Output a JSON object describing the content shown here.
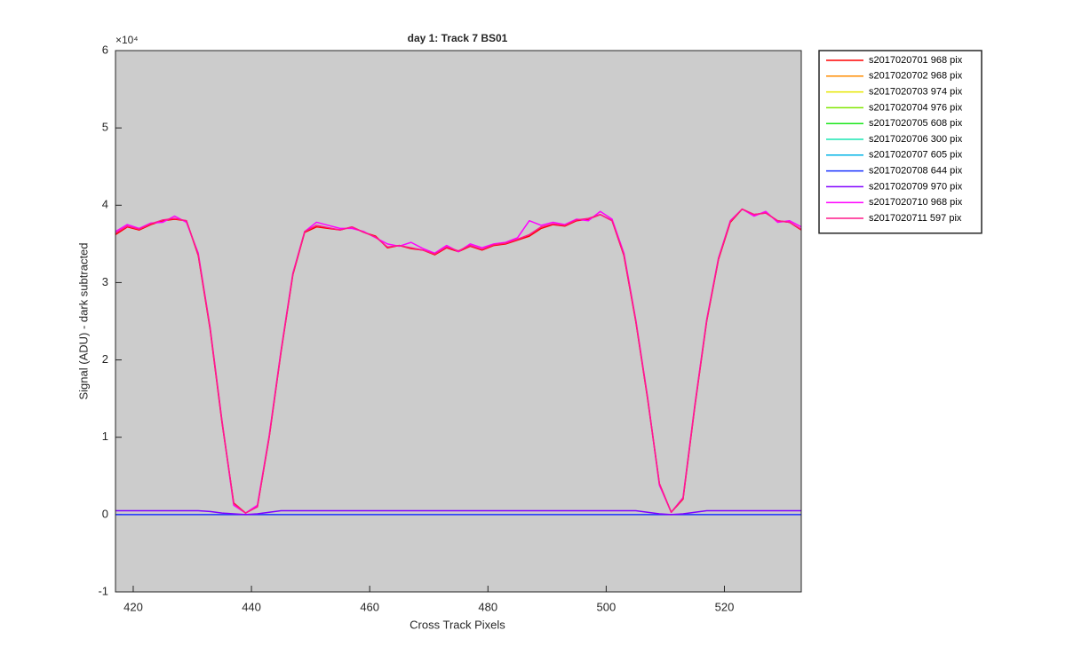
{
  "chart_data": {
    "type": "line",
    "title": "day 1: Track 7  BS01",
    "x_label": "Cross Track Pixels",
    "y_label": "Signal (ADU) - dark subtracted",
    "y_exponent": "×10⁴",
    "xlim": [
      417,
      533
    ],
    "xticks": [
      420,
      440,
      460,
      480,
      500,
      520
    ],
    "ylim": [
      -1,
      6
    ],
    "yticks": [
      -1,
      0,
      1,
      2,
      3,
      4,
      5,
      6
    ],
    "grid": false,
    "legend": "outside-right",
    "x": [
      417,
      419,
      421,
      423,
      425,
      427,
      429,
      431,
      433,
      435,
      437,
      439,
      441,
      443,
      445,
      447,
      449,
      451,
      453,
      455,
      457,
      459,
      461,
      463,
      465,
      467,
      469,
      471,
      473,
      475,
      477,
      479,
      481,
      483,
      485,
      487,
      489,
      491,
      493,
      495,
      497,
      499,
      501,
      503,
      505,
      507,
      509,
      511,
      513,
      515,
      517,
      519,
      521,
      523,
      525,
      527,
      529,
      531,
      533
    ],
    "series": [
      {
        "name": "s2017020701 968 pix",
        "color": "#ff0000",
        "values": [
          3.62,
          3.72,
          3.68,
          3.75,
          3.8,
          3.82,
          3.8,
          3.35,
          2.4,
          1.2,
          0.15,
          0.02,
          0.1,
          1.0,
          2.1,
          3.1,
          3.65,
          3.72,
          3.7,
          3.68,
          3.72,
          3.65,
          3.6,
          3.45,
          3.48,
          3.44,
          3.42,
          3.36,
          3.45,
          3.4,
          3.47,
          3.42,
          3.48,
          3.5,
          3.55,
          3.6,
          3.7,
          3.75,
          3.73,
          3.8,
          3.82,
          3.88,
          3.8,
          3.35,
          2.5,
          1.5,
          0.4,
          0.03,
          0.2,
          1.4,
          2.5,
          3.3,
          3.78,
          3.95,
          3.88,
          3.9,
          3.8,
          3.78,
          3.68
        ]
      },
      {
        "name": "s2017020702 968 pix",
        "color": "#ff8c00",
        "values": [
          null,
          null,
          null,
          null,
          null,
          null,
          null,
          null,
          null,
          null,
          null,
          null,
          null,
          null,
          null,
          null,
          null,
          null,
          null,
          null,
          null,
          null,
          null,
          null,
          null,
          null,
          null,
          null,
          null,
          null,
          null,
          null,
          null,
          null,
          null,
          null,
          null,
          null,
          null,
          null,
          null,
          null,
          null,
          null,
          null,
          null,
          null,
          null,
          null,
          null,
          null,
          null,
          null,
          null,
          null,
          null,
          null,
          null,
          null
        ]
      },
      {
        "name": "s2017020703 974 pix",
        "color": "#e6e600",
        "values": [
          null,
          null,
          null,
          null,
          null,
          null,
          null,
          null,
          null,
          null,
          null,
          null,
          null,
          null,
          null,
          null,
          null,
          null,
          null,
          null,
          null,
          null,
          null,
          null,
          null,
          null,
          null,
          null,
          null,
          null,
          null,
          null,
          null,
          null,
          null,
          null,
          null,
          null,
          null,
          null,
          null,
          null,
          null,
          null,
          null,
          null,
          null,
          null,
          null,
          null,
          null,
          null,
          null,
          null,
          null,
          null,
          null,
          null,
          null
        ]
      },
      {
        "name": "s2017020704 976 pix",
        "color": "#80e600",
        "values": [
          null,
          null,
          null,
          null,
          null,
          null,
          null,
          null,
          null,
          null,
          null,
          null,
          null,
          null,
          null,
          null,
          null,
          null,
          null,
          null,
          null,
          null,
          null,
          null,
          null,
          null,
          null,
          null,
          null,
          null,
          null,
          null,
          null,
          null,
          null,
          null,
          null,
          null,
          null,
          null,
          null,
          null,
          null,
          null,
          null,
          null,
          null,
          null,
          null,
          null,
          null,
          null,
          null,
          null,
          null,
          null,
          null,
          null,
          null
        ]
      },
      {
        "name": "s2017020705 608 pix",
        "color": "#1ae61a",
        "values": [
          null,
          null,
          null,
          null,
          null,
          null,
          null,
          null,
          null,
          null,
          null,
          null,
          null,
          null,
          null,
          null,
          null,
          null,
          null,
          null,
          null,
          null,
          null,
          null,
          null,
          null,
          null,
          null,
          null,
          null,
          null,
          null,
          null,
          null,
          null,
          null,
          null,
          null,
          null,
          null,
          null,
          null,
          null,
          null,
          null,
          null,
          null,
          null,
          null,
          null,
          null,
          null,
          null,
          null,
          null,
          null,
          null,
          null,
          null
        ]
      },
      {
        "name": "s2017020706 300 pix",
        "color": "#1ae6b3",
        "values": [
          null,
          null,
          null,
          null,
          null,
          null,
          null,
          null,
          null,
          null,
          null,
          null,
          null,
          null,
          null,
          null,
          null,
          null,
          null,
          null,
          null,
          null,
          null,
          null,
          null,
          null,
          null,
          null,
          null,
          null,
          null,
          null,
          null,
          null,
          null,
          null,
          null,
          null,
          null,
          null,
          null,
          null,
          null,
          null,
          null,
          null,
          null,
          null,
          null,
          null,
          null,
          null,
          null,
          null,
          null,
          null,
          null,
          null,
          null
        ]
      },
      {
        "name": "s2017020707 605 pix",
        "color": "#00b3e6",
        "values": [
          null,
          null,
          null,
          null,
          null,
          null,
          null,
          null,
          null,
          null,
          null,
          null,
          null,
          null,
          null,
          null,
          null,
          null,
          null,
          null,
          null,
          null,
          null,
          null,
          null,
          null,
          null,
          null,
          null,
          null,
          null,
          null,
          null,
          null,
          null,
          null,
          null,
          null,
          null,
          null,
          null,
          null,
          null,
          null,
          null,
          null,
          null,
          null,
          null,
          null,
          null,
          null,
          null,
          null,
          null,
          null,
          null,
          null,
          null
        ]
      },
      {
        "name": "s2017020708 644 pix",
        "color": "#1a33ff",
        "values": [
          0,
          0,
          0,
          0,
          0,
          0,
          0,
          0,
          0,
          0,
          0,
          0,
          0,
          0,
          0,
          0,
          0,
          0,
          0,
          0,
          0,
          0,
          0,
          0,
          0,
          0,
          0,
          0,
          0,
          0,
          0,
          0,
          0,
          0,
          0,
          0,
          0,
          0,
          0,
          0,
          0,
          0,
          0,
          0,
          0,
          0,
          0,
          0,
          0,
          0,
          0,
          0,
          0,
          0,
          0,
          0,
          0,
          0,
          0
        ]
      },
      {
        "name": "s2017020709 970 pix",
        "color": "#8000ff",
        "values": [
          0.05,
          0.05,
          0.05,
          0.05,
          0.05,
          0.05,
          0.05,
          0.05,
          0.04,
          0.02,
          0.01,
          0,
          0.01,
          0.03,
          0.05,
          0.05,
          0.05,
          0.05,
          0.05,
          0.05,
          0.05,
          0.05,
          0.05,
          0.05,
          0.05,
          0.05,
          0.05,
          0.05,
          0.05,
          0.05,
          0.05,
          0.05,
          0.05,
          0.05,
          0.05,
          0.05,
          0.05,
          0.05,
          0.05,
          0.05,
          0.05,
          0.05,
          0.05,
          0.05,
          0.05,
          0.03,
          0.01,
          0,
          0.01,
          0.03,
          0.05,
          0.05,
          0.05,
          0.05,
          0.05,
          0.05,
          0.05,
          0.05,
          0.05
        ]
      },
      {
        "name": "s2017020710 968 pix",
        "color": "#ff00ff",
        "values": [
          3.66,
          3.75,
          3.7,
          3.77,
          3.78,
          3.86,
          3.78,
          3.38,
          2.42,
          1.22,
          0.12,
          0.02,
          0.12,
          1.02,
          2.12,
          3.12,
          3.66,
          3.78,
          3.74,
          3.7,
          3.7,
          3.66,
          3.58,
          3.5,
          3.47,
          3.52,
          3.44,
          3.38,
          3.48,
          3.4,
          3.5,
          3.45,
          3.5,
          3.52,
          3.58,
          3.8,
          3.74,
          3.78,
          3.75,
          3.82,
          3.8,
          3.92,
          3.82,
          3.38,
          2.52,
          1.52,
          0.38,
          0.03,
          0.22,
          1.42,
          2.52,
          3.32,
          3.8,
          3.95,
          3.86,
          3.92,
          3.78,
          3.8,
          3.72
        ]
      },
      {
        "name": "s2017020711 597 pix",
        "color": "#ff1a8c",
        "values": [
          3.64,
          3.73,
          3.69,
          3.76,
          3.81,
          3.83,
          3.8,
          3.36,
          2.42,
          1.22,
          0.14,
          0.02,
          0.1,
          1.01,
          2.11,
          3.11,
          3.66,
          3.74,
          3.71,
          3.68,
          3.72,
          3.65,
          3.59,
          3.46,
          3.48,
          3.45,
          3.42,
          3.37,
          3.46,
          3.41,
          3.48,
          3.43,
          3.49,
          3.51,
          3.56,
          3.62,
          3.72,
          3.76,
          3.74,
          3.81,
          3.83,
          3.88,
          3.8,
          3.36,
          2.51,
          1.51,
          0.4,
          0.03,
          0.21,
          1.41,
          2.51,
          3.31,
          3.79,
          3.95,
          3.88,
          3.9,
          3.8,
          3.78,
          3.69
        ]
      }
    ]
  }
}
